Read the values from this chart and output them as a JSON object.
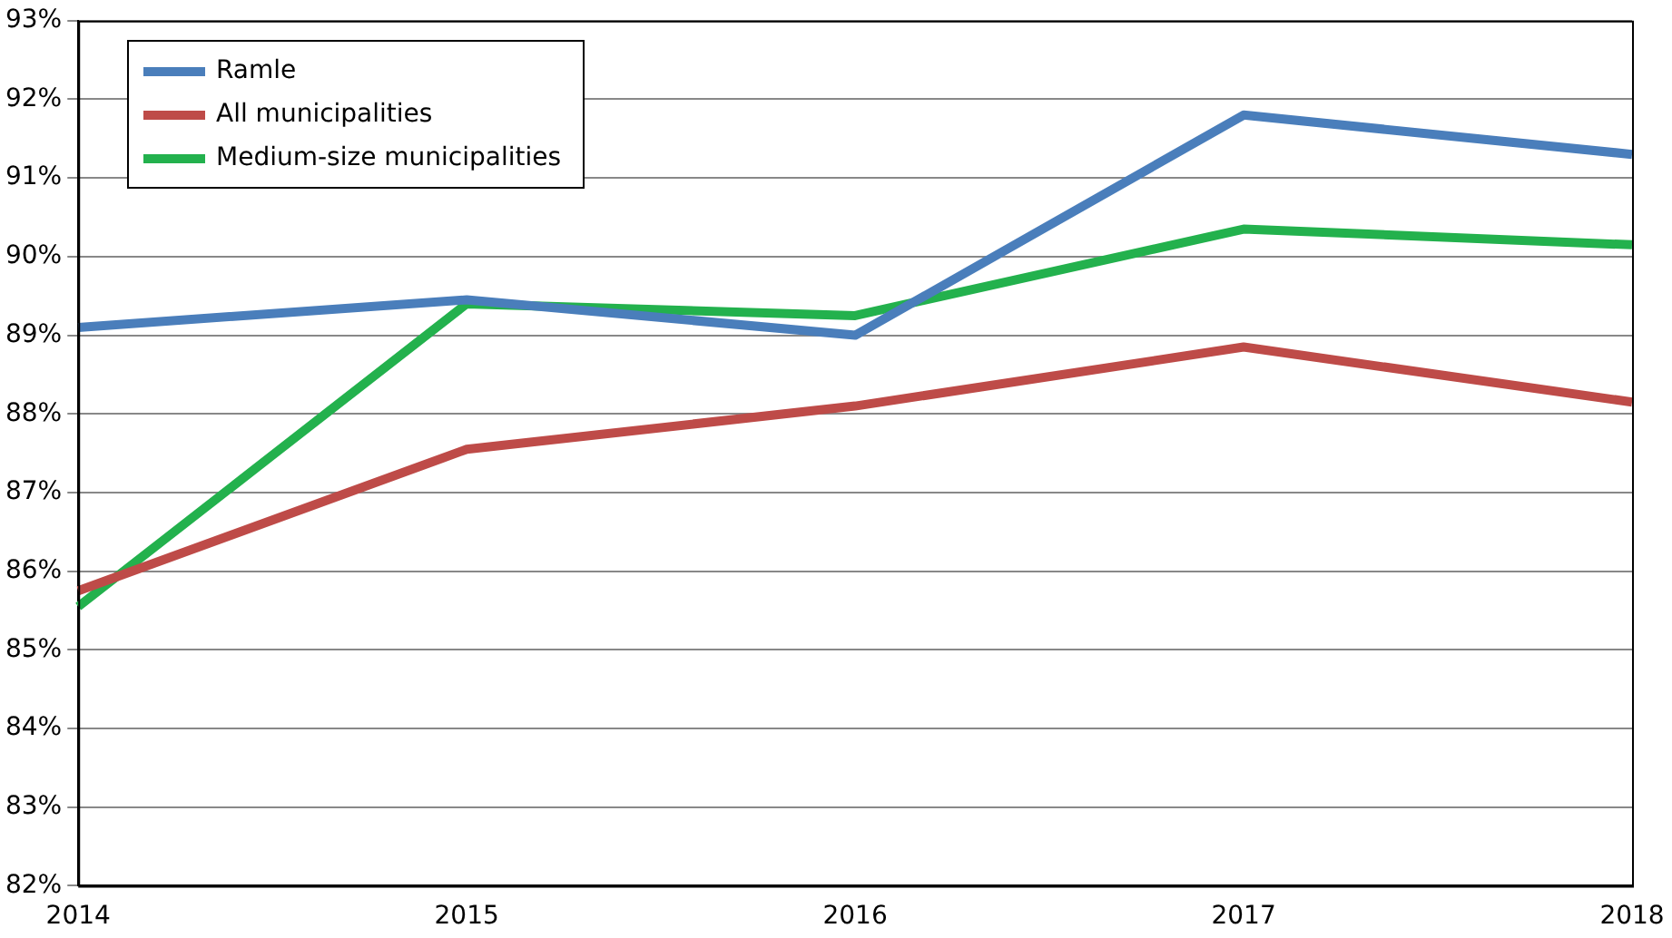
{
  "chart_data": {
    "type": "line",
    "categories": [
      "2014",
      "2015",
      "2016",
      "2017",
      "2018"
    ],
    "series": [
      {
        "name": "Ramle",
        "color": "#4a7ebb",
        "values": [
          89.1,
          89.45,
          89.0,
          91.8,
          91.3
        ]
      },
      {
        "name": "All municipalities",
        "color": "#be4b48",
        "values": [
          85.75,
          87.55,
          88.1,
          88.85,
          88.15
        ]
      },
      {
        "name": "Medium-size municipalities",
        "color": "#23b14d",
        "values": [
          85.55,
          89.4,
          89.25,
          90.35,
          90.15
        ]
      }
    ],
    "ylim": [
      82,
      93
    ],
    "yticks": [
      {
        "value": 82,
        "label": "82%"
      },
      {
        "value": 83,
        "label": "83%"
      },
      {
        "value": 84,
        "label": "84%"
      },
      {
        "value": 85,
        "label": "85%"
      },
      {
        "value": 86,
        "label": "86%"
      },
      {
        "value": 87,
        "label": "87%"
      },
      {
        "value": 88,
        "label": "88%"
      },
      {
        "value": 89,
        "label": "89%"
      },
      {
        "value": 90,
        "label": "90%"
      },
      {
        "value": 91,
        "label": "91%"
      },
      {
        "value": 92,
        "label": "92%"
      },
      {
        "value": 93,
        "label": "93%"
      }
    ],
    "grid": "y",
    "legend": "top left",
    "marker": "none",
    "line_style": "solid"
  }
}
